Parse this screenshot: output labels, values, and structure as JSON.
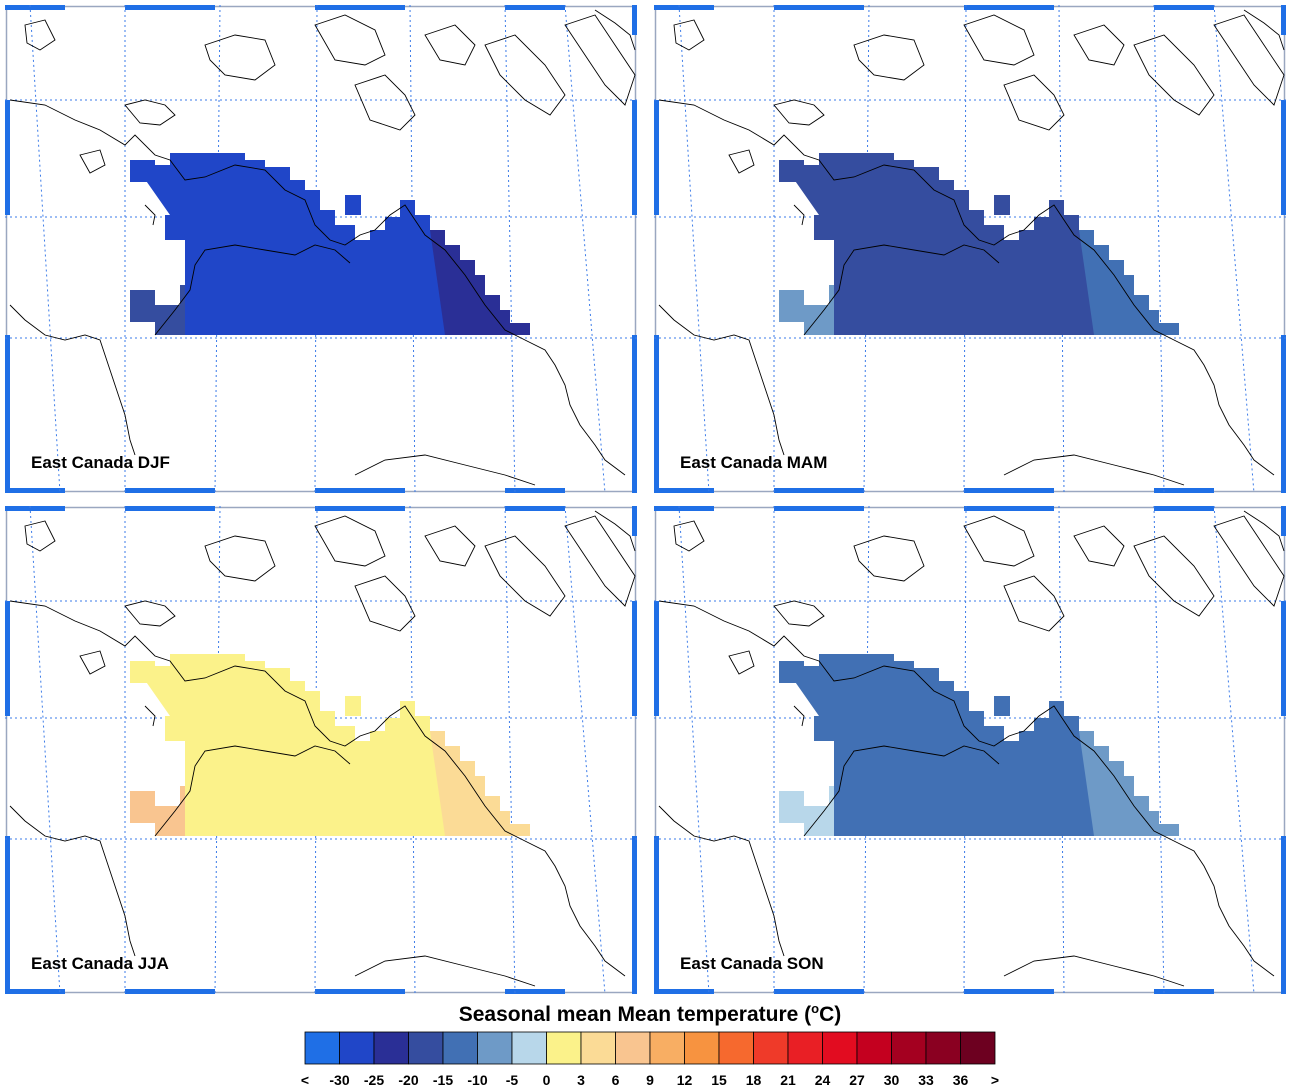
{
  "panels": [
    {
      "label": "East Canada DJF",
      "bands": [
        "-25",
        "-20",
        "-15"
      ]
    },
    {
      "label": "East Canada MAM",
      "bands": [
        "-15",
        "-10",
        "-5"
      ]
    },
    {
      "label": "East Canada JJA",
      "bands": [
        "3",
        "6",
        "9"
      ]
    },
    {
      "label": "East Canada SON",
      "bands": [
        "-10",
        "-5",
        "0"
      ]
    }
  ],
  "legend": {
    "title_main": "Seasonal mean Mean temperature (",
    "title_sup": "o",
    "title_end": "C)",
    "ticks": [
      "<",
      "-30",
      "-25",
      "-20",
      "-15",
      "-10",
      "-5",
      "0",
      "3",
      "6",
      "9",
      "12",
      "15",
      "18",
      "21",
      "24",
      "27",
      "30",
      "33",
      "36",
      ">"
    ],
    "colors": [
      "#1f6fe6",
      "#2046c8",
      "#2a2f96",
      "#354d9f",
      "#4170b4",
      "#6e9ac7",
      "#b8d7ea",
      "#fbf28a",
      "#fbdb96",
      "#f9c590",
      "#f8ae63",
      "#f79340",
      "#f6692e",
      "#ef3a29",
      "#e91f25",
      "#e20c20",
      "#c4001f",
      "#a40020",
      "#8a0021",
      "#6d0020"
    ]
  },
  "colors": {
    "frame": "#1f6fe6",
    "grid": "#3b7be8",
    "coast": "#000000"
  }
}
